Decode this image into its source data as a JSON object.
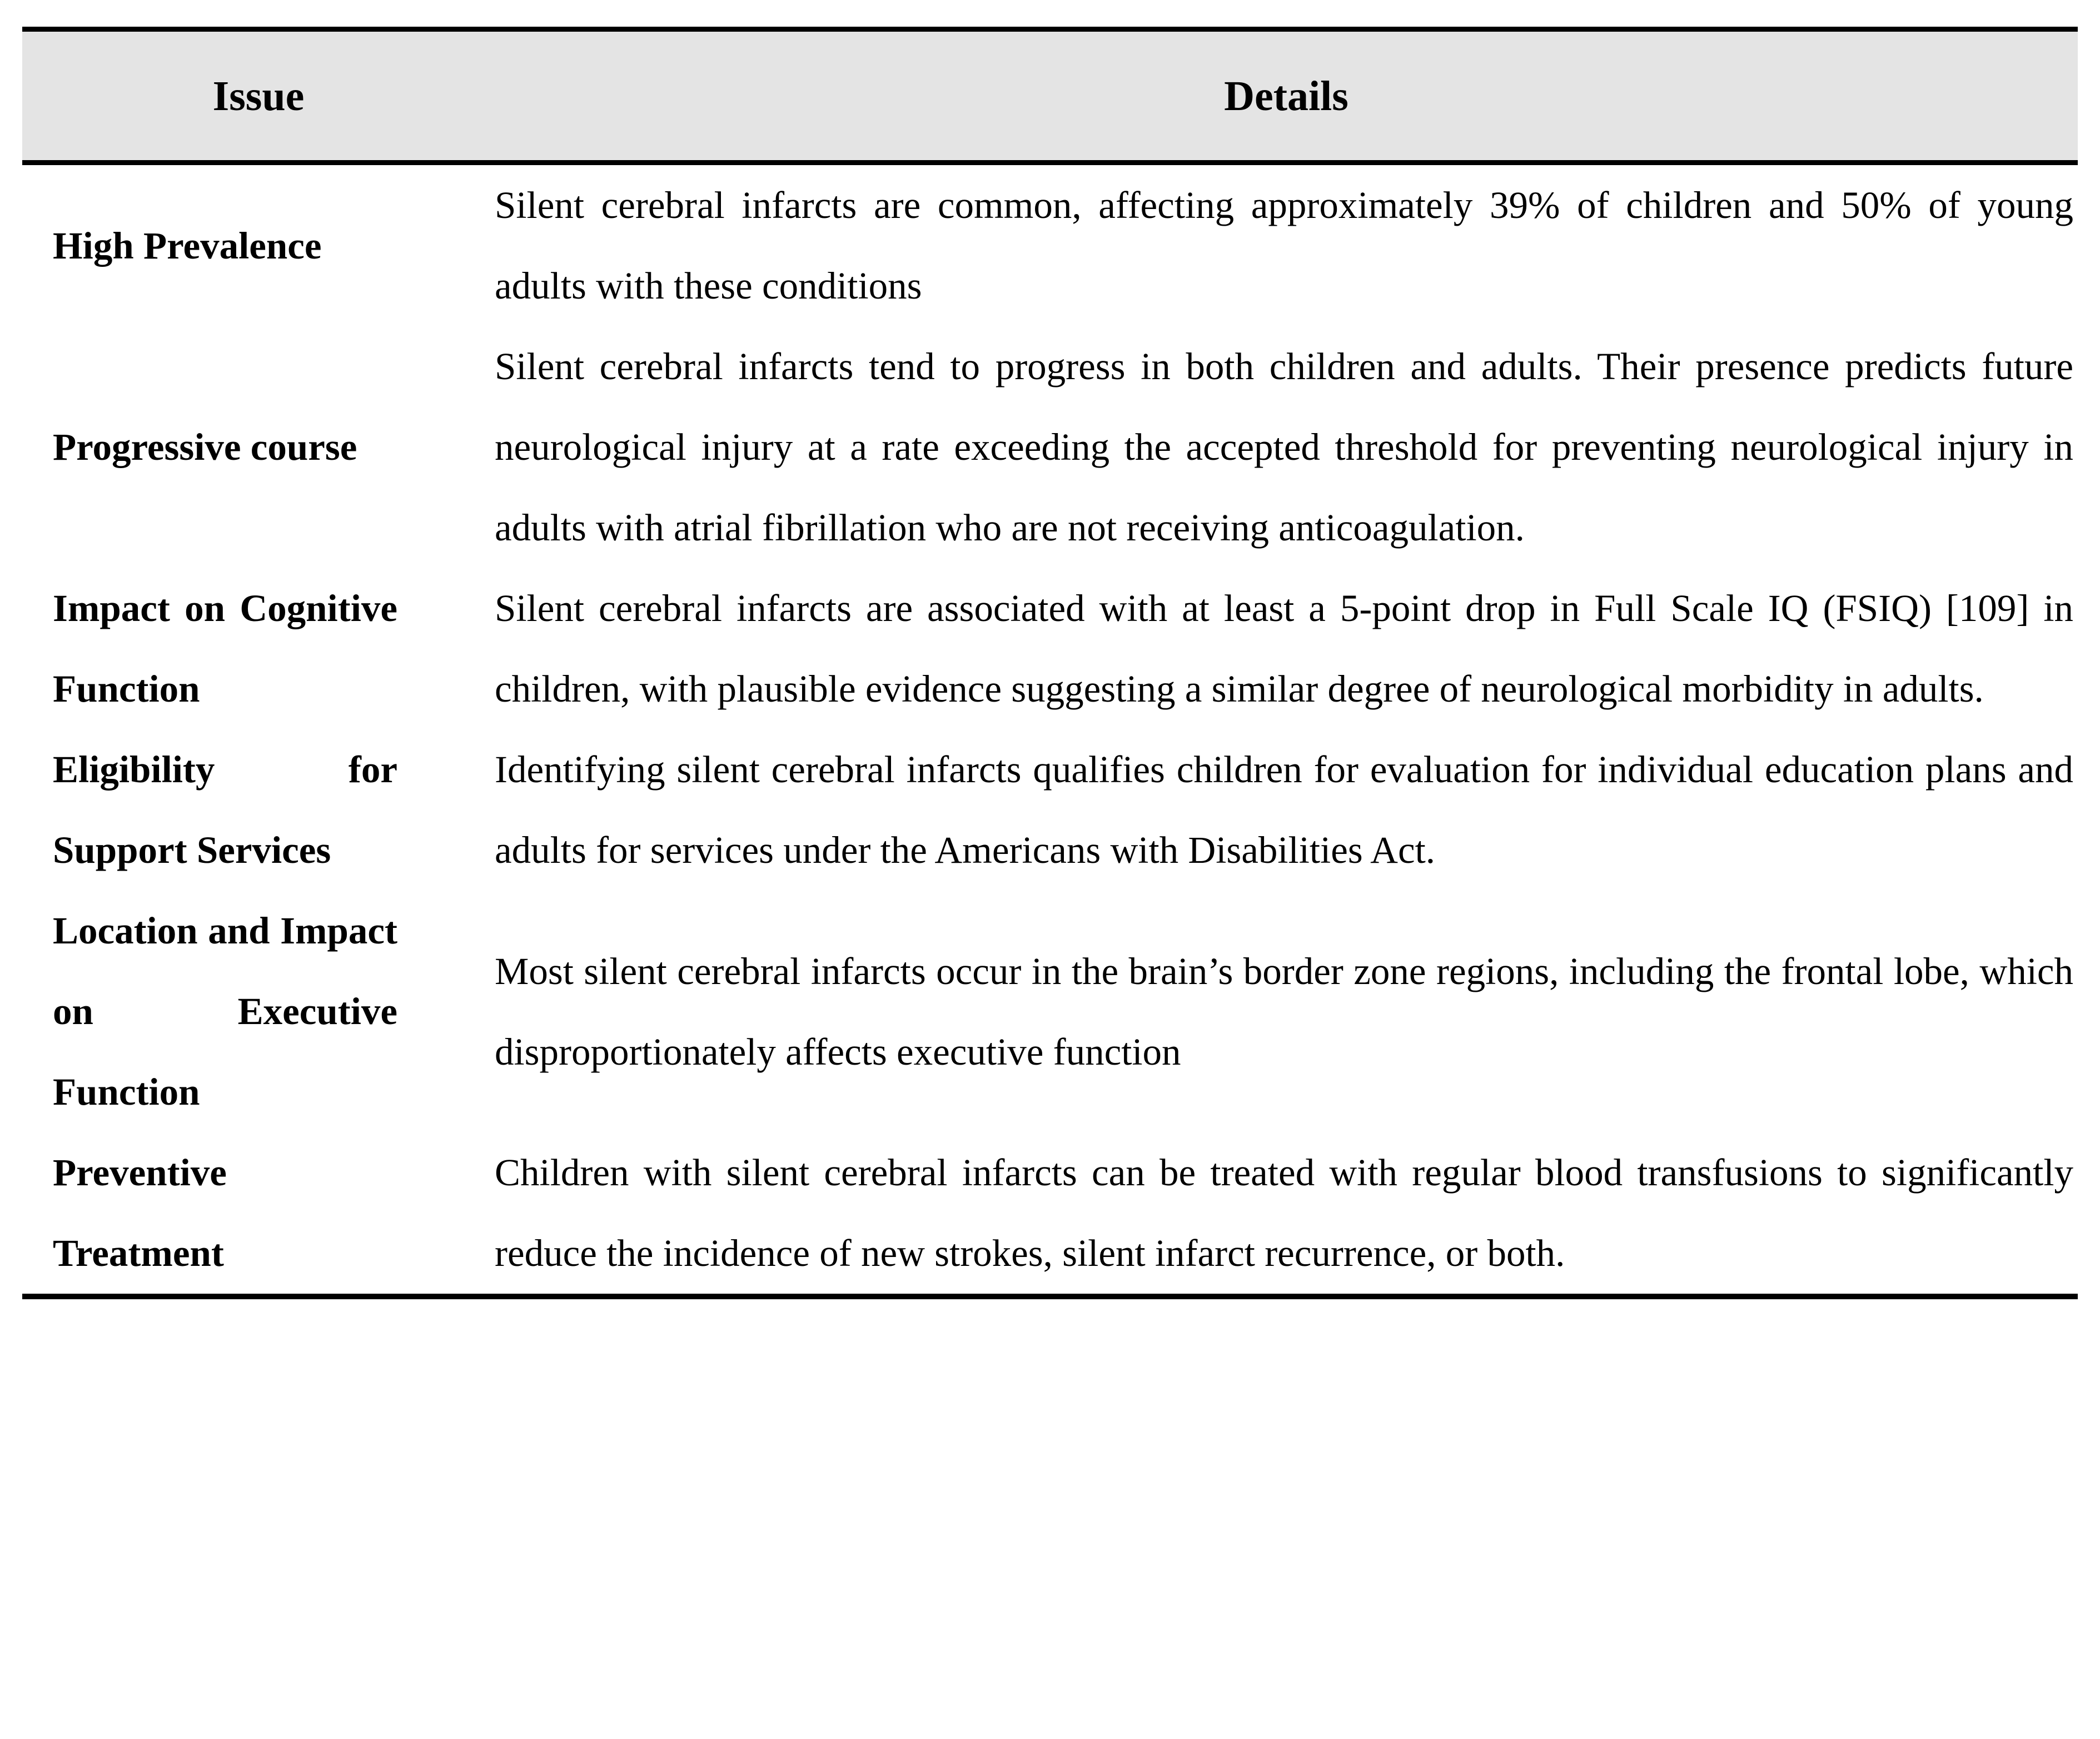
{
  "table": {
    "columns": [
      "Issue",
      "Details"
    ],
    "rows": [
      {
        "issue": "High Prevalence",
        "details": "Silent cerebral infarcts are common, affecting approximately 39% of children and 50% of young adults with these conditions"
      },
      {
        "issue": "Progressive course",
        "details": "Silent cerebral infarcts tend to progress in both children and adults. Their presence predicts future neurological injury at a rate exceeding the accepted threshold for preventing neurological injury in adults with atrial fibrillation who are not receiving anticoagulation."
      },
      {
        "issue": "Impact on Cognitive Function",
        "details": "Silent cerebral infarcts are associated with at least a 5-point drop in Full Scale IQ (FSIQ) [109] in children, with plausible evidence suggesting a similar degree of neurological morbidity in adults."
      },
      {
        "issue": "Eligibility for Support Services",
        "details": "Identifying silent cerebral infarcts qualifies children for evaluation for individual education plans and adults for services under the Americans with Disabilities Act."
      },
      {
        "issue": "Location and Impact on Executive Function",
        "details": "Most silent cerebral infarcts occur in the brain’s border zone regions, including the frontal lobe, which disproportionately affects executive function"
      },
      {
        "issue": "Preventive Treatment",
        "details": "Children with silent cerebral infarcts can be treated with regular blood transfusions to significantly reduce the incidence of new strokes, silent infarct recurrence, or both."
      }
    ],
    "colors": {
      "header_bg": "#e4e4e4",
      "border": "#000000",
      "text": "#000000"
    }
  }
}
